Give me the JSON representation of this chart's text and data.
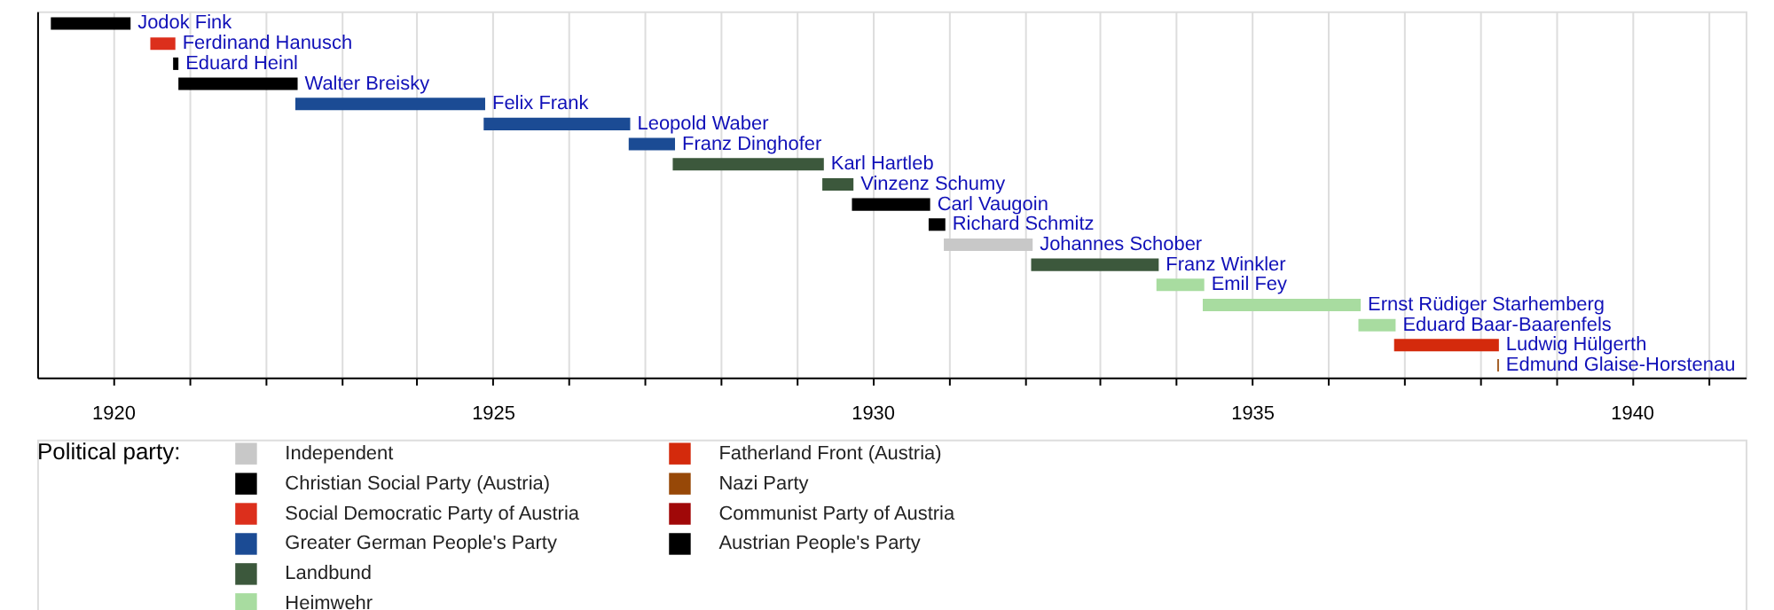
{
  "chart_data": {
    "type": "bar",
    "orientation": "horizontal",
    "legend_title": "Political party:",
    "legend": "bottom left",
    "grid": "x",
    "tick_labels": "x",
    "categories": [
      "Jodok Fink",
      "Ferdinand Hanusch",
      "Eduard Heinl",
      "Walter Breisky",
      "Felix Frank",
      "Leopold Waber",
      "Franz Dinghofer",
      "Karl Hartleb",
      "Vinzenz Schumy",
      "Carl Vaugoin",
      "Richard Schmitz",
      "Johannes Schober",
      "Franz Winkler",
      "Emil Fey",
      "Ernst Rüdiger Starhemberg",
      "Eduard Baar-Baarenfels",
      "Ludwig Hülgerth",
      "Edmund Glaise-Horstenau"
    ],
    "series": [
      {
        "name": "Independent",
        "color": "#c8c8c8",
        "base": [
          null,
          null,
          null,
          null,
          null,
          null,
          null,
          null,
          null,
          null,
          null,
          1930.94,
          null,
          null,
          null,
          null,
          null,
          null
        ],
        "values": [
          null,
          null,
          null,
          null,
          null,
          null,
          null,
          null,
          null,
          null,
          null,
          1.17,
          null,
          null,
          null,
          null,
          null,
          null
        ]
      },
      {
        "name": "Christian Social Party (Austria)",
        "color": "#000000",
        "base": [
          1919.18,
          null,
          1920.79,
          1920.86,
          null,
          null,
          null,
          null,
          null,
          1929.73,
          1930.74,
          null,
          null,
          null,
          null,
          null,
          null,
          null
        ],
        "values": [
          1.05,
          null,
          0.07,
          1.57,
          null,
          null,
          null,
          null,
          null,
          1.03,
          0.22,
          null,
          null,
          null,
          null,
          null,
          null,
          null
        ]
      },
      {
        "name": "Social Democratic Party of Austria",
        "color": "#dc2f1c",
        "base": [
          null,
          1920.49,
          null,
          null,
          null,
          null,
          null,
          null,
          null,
          null,
          null,
          null,
          null,
          null,
          null,
          null,
          null,
          null
        ],
        "values": [
          null,
          0.33,
          null,
          null,
          null,
          null,
          null,
          null,
          null,
          null,
          null,
          null,
          null,
          null,
          null,
          null,
          null,
          null
        ]
      },
      {
        "name": "Greater German People's Party",
        "color": "#1b4b94",
        "base": [
          null,
          null,
          null,
          null,
          1922.4,
          1924.88,
          1926.79,
          null,
          null,
          null,
          null,
          null,
          null,
          null,
          null,
          null,
          null,
          null
        ],
        "values": [
          null,
          null,
          null,
          null,
          2.5,
          1.93,
          0.61,
          null,
          null,
          null,
          null,
          null,
          null,
          null,
          null,
          null,
          null,
          null
        ]
      },
      {
        "name": "Landbund",
        "color": "#3c583c",
        "base": [
          null,
          null,
          null,
          null,
          null,
          null,
          null,
          1927.37,
          1929.34,
          null,
          null,
          null,
          1932.09,
          null,
          null,
          null,
          null,
          null
        ],
        "values": [
          null,
          null,
          null,
          null,
          null,
          null,
          null,
          1.99,
          0.41,
          null,
          null,
          null,
          1.68,
          null,
          null,
          null,
          null,
          null
        ]
      },
      {
        "name": "Heimwehr",
        "color": "#a8dca0",
        "base": [
          null,
          null,
          null,
          null,
          null,
          null,
          null,
          null,
          null,
          null,
          null,
          null,
          null,
          1933.74,
          1934.35,
          1936.4,
          null,
          null
        ],
        "values": [
          null,
          null,
          null,
          null,
          null,
          null,
          null,
          null,
          null,
          null,
          null,
          null,
          null,
          0.63,
          2.08,
          0.49,
          null,
          null
        ]
      },
      {
        "name": "Fatherland Front (Austria)",
        "color": "#d42a0c",
        "base": [
          null,
          null,
          null,
          null,
          null,
          null,
          null,
          null,
          null,
          null,
          null,
          null,
          null,
          null,
          null,
          null,
          1936.87,
          null
        ],
        "values": [
          null,
          null,
          null,
          null,
          null,
          null,
          null,
          null,
          null,
          null,
          null,
          null,
          null,
          null,
          null,
          null,
          1.38,
          null
        ]
      },
      {
        "name": "Nazi Party",
        "color": "#974807",
        "base": [
          null,
          null,
          null,
          null,
          null,
          null,
          null,
          null,
          null,
          null,
          null,
          null,
          null,
          null,
          null,
          null,
          null,
          1938.23
        ],
        "values": [
          null,
          null,
          null,
          null,
          null,
          null,
          null,
          null,
          null,
          null,
          null,
          null,
          null,
          null,
          null,
          null,
          null,
          0.02
        ]
      },
      {
        "name": "Communist Party of Austria",
        "color": "#a00808",
        "values": [
          null,
          null,
          null,
          null,
          null,
          null,
          null,
          null,
          null,
          null,
          null,
          null,
          null,
          null,
          null,
          null,
          null,
          null
        ]
      },
      {
        "name": "Austrian People's Party",
        "color": "#000000",
        "values": [
          null,
          null,
          null,
          null,
          null,
          null,
          null,
          null,
          null,
          null,
          null,
          null,
          null,
          null,
          null,
          null,
          null,
          null
        ]
      }
    ],
    "xlim": [
      1919,
      1941.5
    ],
    "xticks": [
      1920,
      {
        "value": 1921,
        "label": null
      },
      {
        "value": 1922,
        "label": null
      },
      {
        "value": 1923,
        "label": null
      },
      {
        "value": 1924,
        "label": null
      },
      1925,
      {
        "value": 1926,
        "label": null
      },
      {
        "value": 1927,
        "label": null
      },
      {
        "value": 1928,
        "label": null
      },
      {
        "value": 1929,
        "label": null
      },
      1930,
      {
        "value": 1931,
        "label": null
      },
      {
        "value": 1932,
        "label": null
      },
      {
        "value": 1933,
        "label": null
      },
      {
        "value": 1934,
        "label": null
      },
      1935,
      {
        "value": 1936,
        "label": null
      },
      {
        "value": 1937,
        "label": null
      },
      {
        "value": 1938,
        "label": null
      },
      {
        "value": 1939,
        "label": null
      },
      1940,
      {
        "value": 1941,
        "label": null
      }
    ]
  }
}
